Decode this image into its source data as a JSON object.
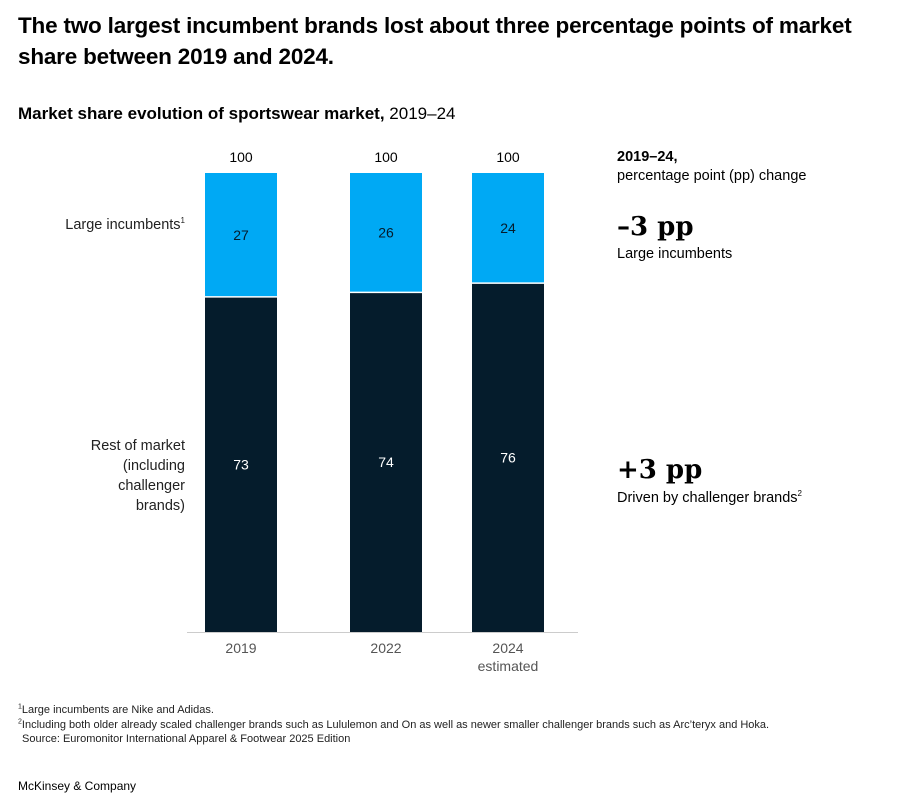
{
  "headline": "The two largest incumbent brands lost about three percentage points of market share between 2019 and 2024.",
  "subtitle": {
    "bold": "Market share evolution of sportswear market,",
    "regular": "2019–24"
  },
  "row_labels": {
    "incumbents": "Large incumbents",
    "incumbents_note": "1",
    "rest": "Rest of market (including challenger brands)"
  },
  "right_panel": {
    "head_bold": "2019–24,",
    "head_regular": "percentage point (pp) change",
    "change_incumbents_value": "–3 pp",
    "change_incumbents_desc": "Large incumbents",
    "change_rest_value": "+3 pp",
    "change_rest_desc": "Driven by challenger brands",
    "change_rest_note": "2"
  },
  "chart_data": {
    "type": "bar",
    "stacked": true,
    "categories": [
      "2019",
      "2022",
      "2024\nestimated"
    ],
    "series": [
      {
        "name": "Rest of market (including challenger brands)",
        "values": [
          73,
          74,
          76
        ],
        "color": "#051c2c",
        "label_color": "#ffffff"
      },
      {
        "name": "Large incumbents",
        "values": [
          27,
          26,
          24
        ],
        "color": "#00a9f4",
        "label_color": "#051c2c"
      }
    ],
    "totals": [
      "100",
      "100",
      "100"
    ],
    "ylim": [
      0,
      100
    ],
    "grid": false,
    "axis_color": "#cccccc"
  },
  "footnotes": [
    {
      "mark": "1",
      "text": "Large incumbents are Nike and Adidas."
    },
    {
      "mark": "2",
      "text": "Including both older already scaled challenger brands such as Lululemon and On as well as newer smaller challenger brands such as Arc’teryx and Hoka."
    },
    {
      "mark": "",
      "text": "Source: Euromonitor International Apparel & Footwear 2025 Edition"
    }
  ],
  "brand": "McKinsey & Company"
}
